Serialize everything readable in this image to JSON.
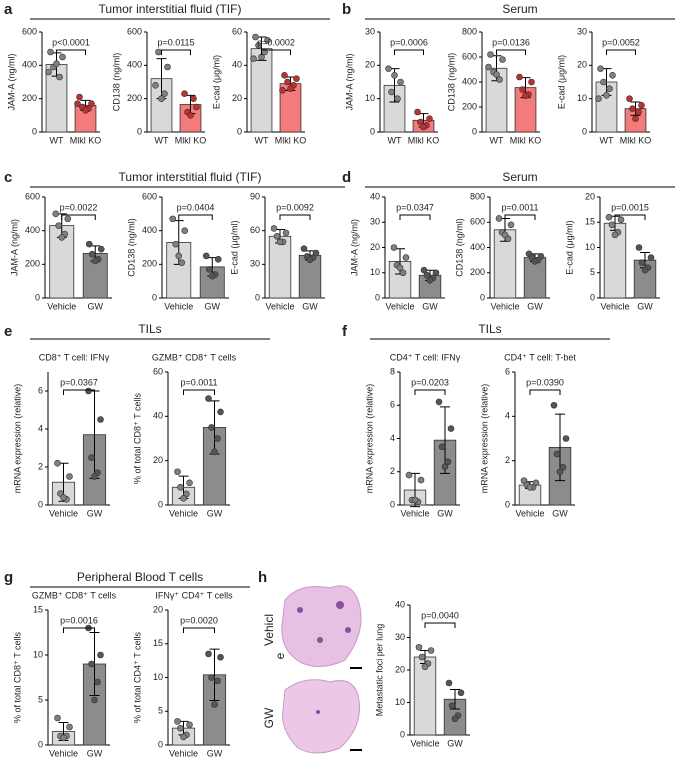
{
  "figure_labels": {
    "letters": [
      "a",
      "b",
      "c",
      "d",
      "e",
      "f",
      "g",
      "h"
    ],
    "groups": [
      "Tumor interstitial fluid (TIF)",
      "Serum",
      "Tumor interstitial fluid (TIF)",
      "Serum",
      "TILs",
      "TILs",
      "Peripheral Blood T cells"
    ],
    "image_labels": [
      "Vehicl",
      "e",
      "GW"
    ]
  },
  "chart_data": [
    {
      "type": "bar",
      "ylabel": "JAM-A (ng/ml)",
      "categories": [
        "WT",
        "Mlkl KO"
      ],
      "values": [
        405,
        160
      ],
      "errors": [
        70,
        30
      ],
      "points": [
        [
          480,
          450,
          390,
          330,
          410,
          360
        ],
        [
          210,
          170,
          150,
          140,
          130,
          170
        ]
      ],
      "colors": [
        "#d9d9d9",
        "#f37b7b"
      ],
      "point_colors": [
        "#808080",
        "#c03030"
      ],
      "pvalue": "p<0.0001",
      "ylim": [
        0,
        600
      ],
      "yticks": [
        0,
        200,
        400,
        600
      ]
    },
    {
      "type": "bar",
      "ylabel": "CD138 (ng/ml)",
      "categories": [
        "WT",
        "Mlkl KO"
      ],
      "values": [
        320,
        165
      ],
      "errors": [
        120,
        55
      ],
      "points": [
        [
          280,
          390,
          480,
          230,
          200
        ],
        [
          230,
          150,
          120,
          200,
          100
        ]
      ],
      "colors": [
        "#d9d9d9",
        "#f37b7b"
      ],
      "point_colors": [
        "#808080",
        "#c03030"
      ],
      "pvalue": "p=0.0115",
      "ylim": [
        0,
        600
      ],
      "yticks": [
        0,
        200,
        400,
        600
      ]
    },
    {
      "type": "bar",
      "ylabel": "E-cad (μg/ml)",
      "categories": [
        "WT",
        "Mlkl KO"
      ],
      "values": [
        50,
        29
      ],
      "errors": [
        7,
        4
      ],
      "points": [
        [
          57,
          55,
          52,
          48,
          45,
          44
        ],
        [
          34,
          32,
          30,
          28,
          26,
          25
        ]
      ],
      "colors": [
        "#d9d9d9",
        "#f37b7b"
      ],
      "point_colors": [
        "#808080",
        "#c03030"
      ],
      "pvalue": "p=0.0002",
      "ylim": [
        0,
        60
      ],
      "yticks": [
        0,
        20,
        40,
        60
      ]
    },
    {
      "type": "bar",
      "ylabel": "JAM-A (ng/ml)",
      "categories": [
        "WT",
        "Mlkl KO"
      ],
      "values": [
        14,
        3.5
      ],
      "errors": [
        5,
        2
      ],
      "points": [
        [
          19,
          15,
          12,
          10,
          17
        ],
        [
          6,
          4,
          3,
          2,
          1.5
        ]
      ],
      "colors": [
        "#d9d9d9",
        "#f37b7b"
      ],
      "point_colors": [
        "#808080",
        "#c03030"
      ],
      "pvalue": "p=0.0006",
      "ylim": [
        0,
        30
      ],
      "yticks": [
        0,
        10,
        20,
        30
      ]
    },
    {
      "type": "bar",
      "ylabel": "CD138 (ng/ml)",
      "categories": [
        "WT",
        "Mlkl KO"
      ],
      "values": [
        510,
        355
      ],
      "errors": [
        100,
        80
      ],
      "points": [
        [
          620,
          580,
          480,
          420,
          460,
          520
        ],
        [
          440,
          400,
          340,
          300,
          290
        ]
      ],
      "colors": [
        "#d9d9d9",
        "#f37b7b"
      ],
      "point_colors": [
        "#808080",
        "#c03030"
      ],
      "pvalue": "p=0.0136",
      "ylim": [
        0,
        800
      ],
      "yticks": [
        0,
        200,
        400,
        600,
        800
      ]
    },
    {
      "type": "bar",
      "ylabel": "E-cad (μg/ml)",
      "categories": [
        "WT",
        "Mlkl KO"
      ],
      "values": [
        15,
        7
      ],
      "errors": [
        4,
        2
      ],
      "points": [
        [
          19,
          17,
          15,
          13,
          11,
          10
        ],
        [
          10,
          8,
          7,
          6,
          4
        ]
      ],
      "colors": [
        "#d9d9d9",
        "#f37b7b"
      ],
      "point_colors": [
        "#808080",
        "#c03030"
      ],
      "pvalue": "p=0.0052",
      "ylim": [
        0,
        30
      ],
      "yticks": [
        0,
        10,
        20,
        30
      ]
    },
    {
      "type": "bar",
      "ylabel": "JAM-A (ng/ml)",
      "categories": [
        "Vehicle",
        "GW"
      ],
      "values": [
        430,
        265
      ],
      "errors": [
        70,
        45
      ],
      "points": [
        [
          500,
          470,
          430,
          380,
          360
        ],
        [
          320,
          290,
          260,
          230,
          220
        ]
      ],
      "colors": [
        "#d9d9d9",
        "#8c8c8c"
      ],
      "point_colors": [
        "#808080",
        "#555555"
      ],
      "pvalue": "p=0.0022",
      "ylim": [
        0,
        600
      ],
      "yticks": [
        0,
        200,
        400,
        600
      ]
    },
    {
      "type": "bar",
      "ylabel": "CD138 (ng/ml)",
      "categories": [
        "Vehicle",
        "GW"
      ],
      "values": [
        330,
        185
      ],
      "errors": [
        130,
        55
      ],
      "points": [
        [
          470,
          400,
          320,
          210,
          250
        ],
        [
          250,
          230,
          170,
          140,
          130
        ]
      ],
      "colors": [
        "#d9d9d9",
        "#8c8c8c"
      ],
      "point_colors": [
        "#808080",
        "#555555"
      ],
      "pvalue": "p=0.0404",
      "ylim": [
        0,
        600
      ],
      "yticks": [
        0,
        200,
        400,
        600
      ]
    },
    {
      "type": "bar",
      "ylabel": "E-cad (μg/ml)",
      "categories": [
        "Vehicle",
        "GW"
      ],
      "values": [
        55,
        38
      ],
      "errors": [
        6,
        4
      ],
      "points": [
        [
          62,
          58,
          55,
          50,
          50
        ],
        [
          44,
          40,
          37,
          36,
          34
        ]
      ],
      "colors": [
        "#d9d9d9",
        "#8c8c8c"
      ],
      "point_colors": [
        "#808080",
        "#555555"
      ],
      "pvalue": "p=0.0092",
      "ylim": [
        0,
        90
      ],
      "yticks": [
        0,
        30,
        60,
        90
      ]
    },
    {
      "type": "bar",
      "ylabel": "JAM-A (ng/ml)",
      "categories": [
        "Vehicle",
        "GW"
      ],
      "values": [
        14.5,
        9
      ],
      "errors": [
        5,
        2
      ],
      "points": [
        [
          20,
          16,
          13,
          10,
          12
        ],
        [
          11,
          10,
          9,
          8,
          7
        ]
      ],
      "colors": [
        "#d9d9d9",
        "#8c8c8c"
      ],
      "point_colors": [
        "#808080",
        "#555555"
      ],
      "pvalue": "p=0.0347",
      "ylim": [
        0,
        40
      ],
      "yticks": [
        0,
        10,
        20,
        30,
        40
      ]
    },
    {
      "type": "bar",
      "ylabel": "CD138 (ng/ml)",
      "categories": [
        "Vehicle",
        "GW"
      ],
      "values": [
        540,
        320
      ],
      "errors": [
        90,
        30
      ],
      "points": [
        [
          630,
          580,
          520,
          470,
          500
        ],
        [
          350,
          330,
          320,
          300,
          290
        ]
      ],
      "colors": [
        "#d9d9d9",
        "#8c8c8c"
      ],
      "point_colors": [
        "#808080",
        "#555555"
      ],
      "pvalue": "p=0.0011",
      "ylim": [
        0,
        800
      ],
      "yticks": [
        0,
        200,
        400,
        600,
        800
      ]
    },
    {
      "type": "bar",
      "ylabel": "E-cad (μg/ml)",
      "categories": [
        "Vehicle",
        "GW"
      ],
      "values": [
        14.8,
        7.5
      ],
      "errors": [
        1.4,
        1.5
      ],
      "points": [
        [
          16,
          15.5,
          14.5,
          13,
          12.5
        ],
        [
          10,
          8,
          7,
          6,
          5.5
        ]
      ],
      "colors": [
        "#d9d9d9",
        "#8c8c8c"
      ],
      "point_colors": [
        "#808080",
        "#555555"
      ],
      "pvalue": "p=0.0015",
      "ylim": [
        0,
        20
      ],
      "yticks": [
        0,
        5,
        10,
        15,
        20
      ]
    },
    {
      "type": "bar",
      "title": "CD8⁺ T cell: IFNγ",
      "ylabel": "mRNA expression (relative)",
      "categories": [
        "Vehicle",
        "GW"
      ],
      "values": [
        1.2,
        3.7
      ],
      "errors": [
        1,
        2.3
      ],
      "points": [
        [
          2.2,
          1.5,
          0.6,
          0.3,
          0.4
        ],
        [
          6,
          4.5,
          2.5,
          1.7,
          1.5
        ]
      ],
      "colors": [
        "#d9d9d9",
        "#8c8c8c"
      ],
      "point_colors": [
        "#808080",
        "#555555"
      ],
      "pvalue": "p=0.0367",
      "ylim": [
        0,
        7
      ],
      "yticks": [
        0,
        2,
        4,
        6
      ]
    },
    {
      "type": "bar",
      "title": "GZMB⁺ CD8⁺ T cells",
      "ylabel": "% of total CD8⁺ T cells",
      "categories": [
        "Vehicle",
        "GW"
      ],
      "values": [
        8,
        35
      ],
      "errors": [
        5,
        12
      ],
      "points": [
        [
          15,
          10,
          8,
          5,
          3
        ],
        [
          48,
          42,
          35,
          30,
          24
        ]
      ],
      "colors": [
        "#d9d9d9",
        "#8c8c8c"
      ],
      "point_colors": [
        "#808080",
        "#555555"
      ],
      "pvalue": "p=0.0011",
      "ylim": [
        0,
        60
      ],
      "yticks": [
        0,
        20,
        40,
        60
      ]
    },
    {
      "type": "bar",
      "title": "CD4⁺ T cell: IFNγ",
      "ylabel": "mRNA expression (relative)",
      "categories": [
        "Vehicle",
        "GW"
      ],
      "values": [
        0.9,
        3.9
      ],
      "errors": [
        1,
        2
      ],
      "points": [
        [
          1.8,
          1.5,
          0.3,
          0.2,
          0.3
        ],
        [
          6.2,
          4.6,
          3.5,
          2.6,
          2.3
        ]
      ],
      "colors": [
        "#d9d9d9",
        "#8c8c8c"
      ],
      "point_colors": [
        "#808080",
        "#555555"
      ],
      "pvalue": "p=0.0203",
      "ylim": [
        0,
        8
      ],
      "yticks": [
        0,
        2,
        4,
        6,
        8
      ]
    },
    {
      "type": "bar",
      "title": "CD4⁺ T cell: T-bet",
      "ylabel": "mRNA expression (relative)",
      "categories": [
        "Vehicle",
        "GW"
      ],
      "values": [
        0.9,
        2.6
      ],
      "errors": [
        0.15,
        1.5
      ],
      "points": [
        [
          1.1,
          1,
          0.9,
          0.8,
          0.8
        ],
        [
          4.5,
          3,
          2.3,
          1.7,
          1.5
        ]
      ],
      "colors": [
        "#d9d9d9",
        "#8c8c8c"
      ],
      "point_colors": [
        "#808080",
        "#555555"
      ],
      "pvalue": "p=0.0390",
      "ylim": [
        0,
        6
      ],
      "yticks": [
        0,
        2,
        4,
        6
      ]
    },
    {
      "type": "bar",
      "title": "GZMB⁺ CD8⁺ T cells",
      "ylabel": "% of total CD8⁺ T cells",
      "categories": [
        "Vehicle",
        "GW"
      ],
      "values": [
        1.5,
        9
      ],
      "errors": [
        1,
        3.5
      ],
      "points": [
        [
          3,
          2,
          1,
          1,
          0.8
        ],
        [
          13,
          10,
          9,
          7,
          5
        ]
      ],
      "colors": [
        "#d9d9d9",
        "#8c8c8c"
      ],
      "point_colors": [
        "#808080",
        "#555555"
      ],
      "pvalue": "p=0.0016",
      "ylim": [
        0,
        15
      ],
      "yticks": [
        0,
        5,
        10,
        15
      ]
    },
    {
      "type": "bar",
      "title": "IFNγ⁺ CD4⁺ T cells",
      "ylabel": "% of total CD4⁺ T cells",
      "categories": [
        "Vehicle",
        "GW"
      ],
      "values": [
        2.5,
        10.4
      ],
      "errors": [
        1,
        3.8
      ],
      "points": [
        [
          3.5,
          3,
          2.5,
          1.5,
          1.2
        ],
        [
          13.5,
          13,
          10,
          9.5,
          6
        ]
      ],
      "colors": [
        "#d9d9d9",
        "#8c8c8c"
      ],
      "point_colors": [
        "#808080",
        "#555555"
      ],
      "pvalue": "p=0.0020",
      "ylim": [
        0,
        20
      ],
      "yticks": [
        0,
        5,
        10,
        15,
        20
      ]
    },
    {
      "type": "bar",
      "ylabel": "Metastatic foci per lung",
      "categories": [
        "Vehicle",
        "GW"
      ],
      "values": [
        24,
        11
      ],
      "errors": [
        2,
        3
      ],
      "points": [
        [
          27,
          26,
          24,
          22,
          21
        ],
        [
          16,
          13,
          9,
          6,
          5
        ]
      ],
      "colors": [
        "#d9d9d9",
        "#8c8c8c"
      ],
      "point_colors": [
        "#808080",
        "#555555"
      ],
      "pvalue": "p=0.0040",
      "ylim": [
        0,
        40
      ],
      "yticks": [
        0,
        10,
        20,
        30,
        40
      ]
    }
  ]
}
